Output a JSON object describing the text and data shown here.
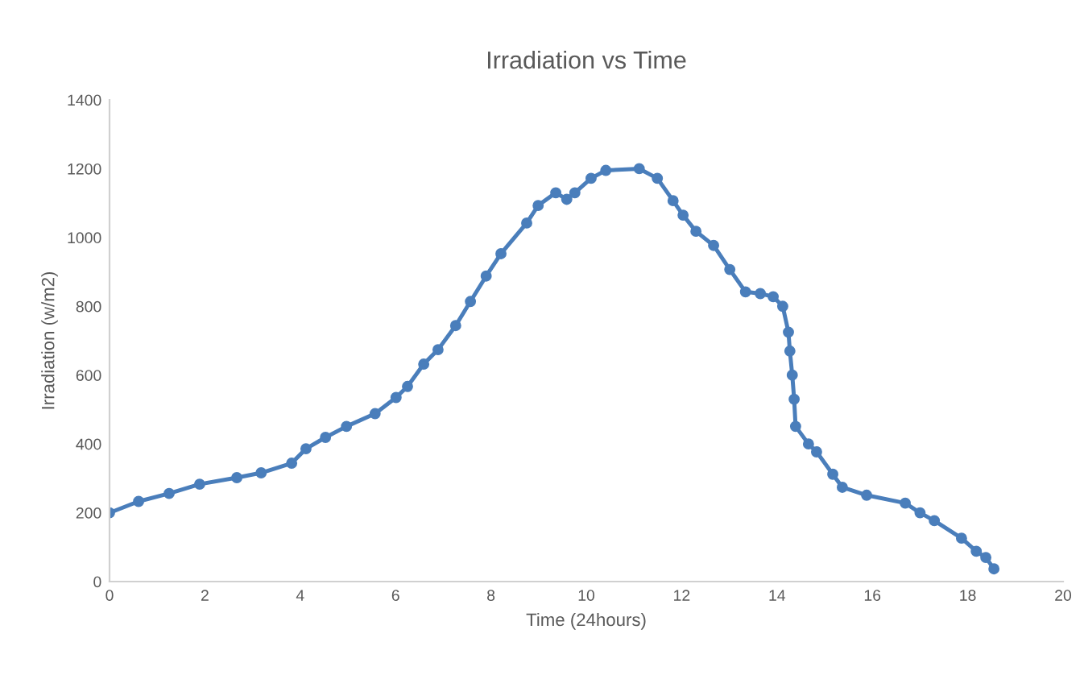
{
  "chart_data": {
    "type": "line",
    "title": "Irradiation vs Time",
    "xlabel": "Time (24hours)",
    "ylabel": "Irradiation (w/m2)",
    "x": [
      0,
      0.61,
      1.25,
      1.89,
      2.67,
      3.18,
      3.82,
      4.12,
      4.53,
      4.97,
      5.57,
      6.01,
      6.25,
      6.59,
      6.89,
      7.26,
      7.57,
      7.9,
      8.21,
      8.75,
      8.99,
      9.36,
      9.59,
      9.76,
      10.1,
      10.41,
      11.11,
      11.49,
      11.82,
      12.03,
      12.3,
      12.67,
      13.01,
      13.34,
      13.65,
      13.92,
      14.12,
      14.24,
      14.27,
      14.32,
      14.36,
      14.39,
      14.66,
      14.83,
      15.17,
      15.37,
      15.88,
      16.69,
      17.0,
      17.3,
      17.87,
      18.18,
      18.38,
      18.55
    ],
    "series": [
      {
        "color": "#4a7ebb",
        "values": [
          200,
          233,
          256,
          283,
          302,
          316,
          344,
          386,
          419,
          451,
          488,
          535,
          567,
          632,
          674,
          744,
          814,
          888,
          953,
          1042,
          1093,
          1130,
          1111,
          1130,
          1172,
          1195,
          1200,
          1172,
          1107,
          1065,
          1018,
          977,
          907,
          842,
          837,
          828,
          800,
          725,
          670,
          600,
          530,
          451,
          400,
          377,
          312,
          274,
          251,
          228,
          200,
          177,
          126,
          88,
          70,
          37
        ]
      }
    ],
    "xlim": [
      0,
      20
    ],
    "xticks": [
      0,
      2,
      4,
      6,
      8,
      10,
      12,
      14,
      16,
      18,
      20
    ],
    "ylim": [
      0,
      1400
    ],
    "yticks": [
      0,
      200,
      400,
      600,
      800,
      1000,
      1200,
      1400
    ],
    "marker": "circle",
    "line_style": "solid",
    "grid": false,
    "legend": false
  }
}
